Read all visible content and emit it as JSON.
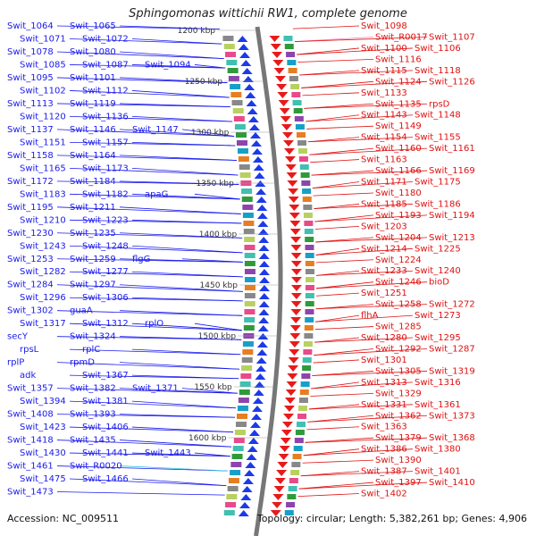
{
  "title": "Sphingomonas wittichii RW1, complete genome",
  "accession": "Accession: NC_009511",
  "topology": "Topology: circular; Length: 5,382,261 bp; Genes: 4,906",
  "colors": {
    "left_strand": "#1a1aee",
    "right_strand": "#e01010",
    "rna_left": "#36c6e0",
    "rna_right": "#f080b0",
    "backbone": "#777777"
  },
  "kbp_ticks": [
    "1200 kbp",
    "1250 kbp",
    "1300 kbp",
    "1350 kbp",
    "1400 kbp",
    "1450 kbp",
    "1500 kbp",
    "1550 kbp",
    "1600 kbp"
  ],
  "left_labels": [
    "Swit_1064",
    "Swit_1065",
    "Swit_1071",
    "Swit_1072",
    "Swit_1078",
    "Swit_1080",
    "Swit_1085",
    "Swit_1087",
    "Swit_1094",
    "Swit_1095",
    "Swit_1101",
    "Swit_1102",
    "Swit_1112",
    "Swit_1113",
    "Swit_1119",
    "Swit_1120",
    "Swit_1136",
    "Swit_1137",
    "Swit_1146",
    "Swit_1147",
    "Swit_1151",
    "Swit_1157",
    "Swit_1158",
    "Swit_1164",
    "Swit_1165",
    "Swit_1173",
    "Swit_1172",
    "Swit_1184",
    "Swit_1183",
    "Swit_1182",
    "apaG",
    "Swit_1195",
    "Swit_1211",
    "Swit_1210",
    "Swit_1223",
    "Swit_1230",
    "Swit_1235",
    "Swit_1243",
    "Swit_1248",
    "Swit_1253",
    "Swit_1259",
    "flgG",
    "Swit_1282",
    "Swit_1277",
    "Swit_1284",
    "Swit_1297",
    "Swit_1296",
    "Swit_1306",
    "Swit_1302",
    "guaA",
    "Swit_1317",
    "Swit_1312",
    "rplO",
    "secY",
    "Swit_1324",
    "rpsL",
    "rplC",
    "rplP",
    "rpmD",
    "adk",
    "Swit_1367",
    "Swit_1357",
    "Swit_1382",
    "Swit_1371",
    "Swit_1394",
    "Swit_1381",
    "Swit_1408",
    "Swit_1393",
    "Swit_1423",
    "Swit_1406",
    "Swit_1418",
    "Swit_1435",
    "Swit_1430",
    "Swit_1441",
    "Swit_1443",
    "Swit_1461",
    "Swit_R0020",
    "Swit_1475",
    "Swit_1466",
    "Swit_1473"
  ],
  "right_labels": [
    "Swit_1098",
    "Swit_R0017",
    "Swit_1107",
    "Swit_1100",
    "Swit_1106",
    "Swit_1116",
    "Swit_1115",
    "Swit_1118",
    "Swit_1124",
    "Swit_1126",
    "Swit_1133",
    "Swit_1135",
    "rpsD",
    "Swit_1143",
    "Swit_1148",
    "Swit_1149",
    "Swit_1154",
    "Swit_1155",
    "Swit_1160",
    "Swit_1161",
    "Swit_1163",
    "Swit_1166",
    "Swit_1169",
    "Swit_1171",
    "Swit_1175",
    "Swit_1180",
    "Swit_1185",
    "Swit_1186",
    "Swit_1193",
    "Swit_1194",
    "Swit_1203",
    "Swit_1204",
    "Swit_1213",
    "Swit_1214",
    "Swit_1225",
    "Swit_1224",
    "Swit_1233",
    "Swit_1240",
    "Swit_1246",
    "bioD",
    "Swit_1251",
    "Swit_1258",
    "Swit_1272",
    "flhA",
    "Swit_1273",
    "Swit_1285",
    "Swit_1280",
    "Swit_1295",
    "Swit_1292",
    "Swit_1287",
    "Swit_1301",
    "Swit_1305",
    "Swit_1319",
    "Swit_1313",
    "Swit_1316",
    "Swit_1329",
    "Swit_1331",
    "Swit_1361",
    "Swit_1362",
    "Swit_1373",
    "Swit_1363",
    "Swit_1379",
    "Swit_1368",
    "Swit_1386",
    "Swit_1380",
    "Swit_1390",
    "Swit_1387",
    "Swit_1401",
    "Swit_1397",
    "Swit_1410",
    "Swit_1402"
  ]
}
